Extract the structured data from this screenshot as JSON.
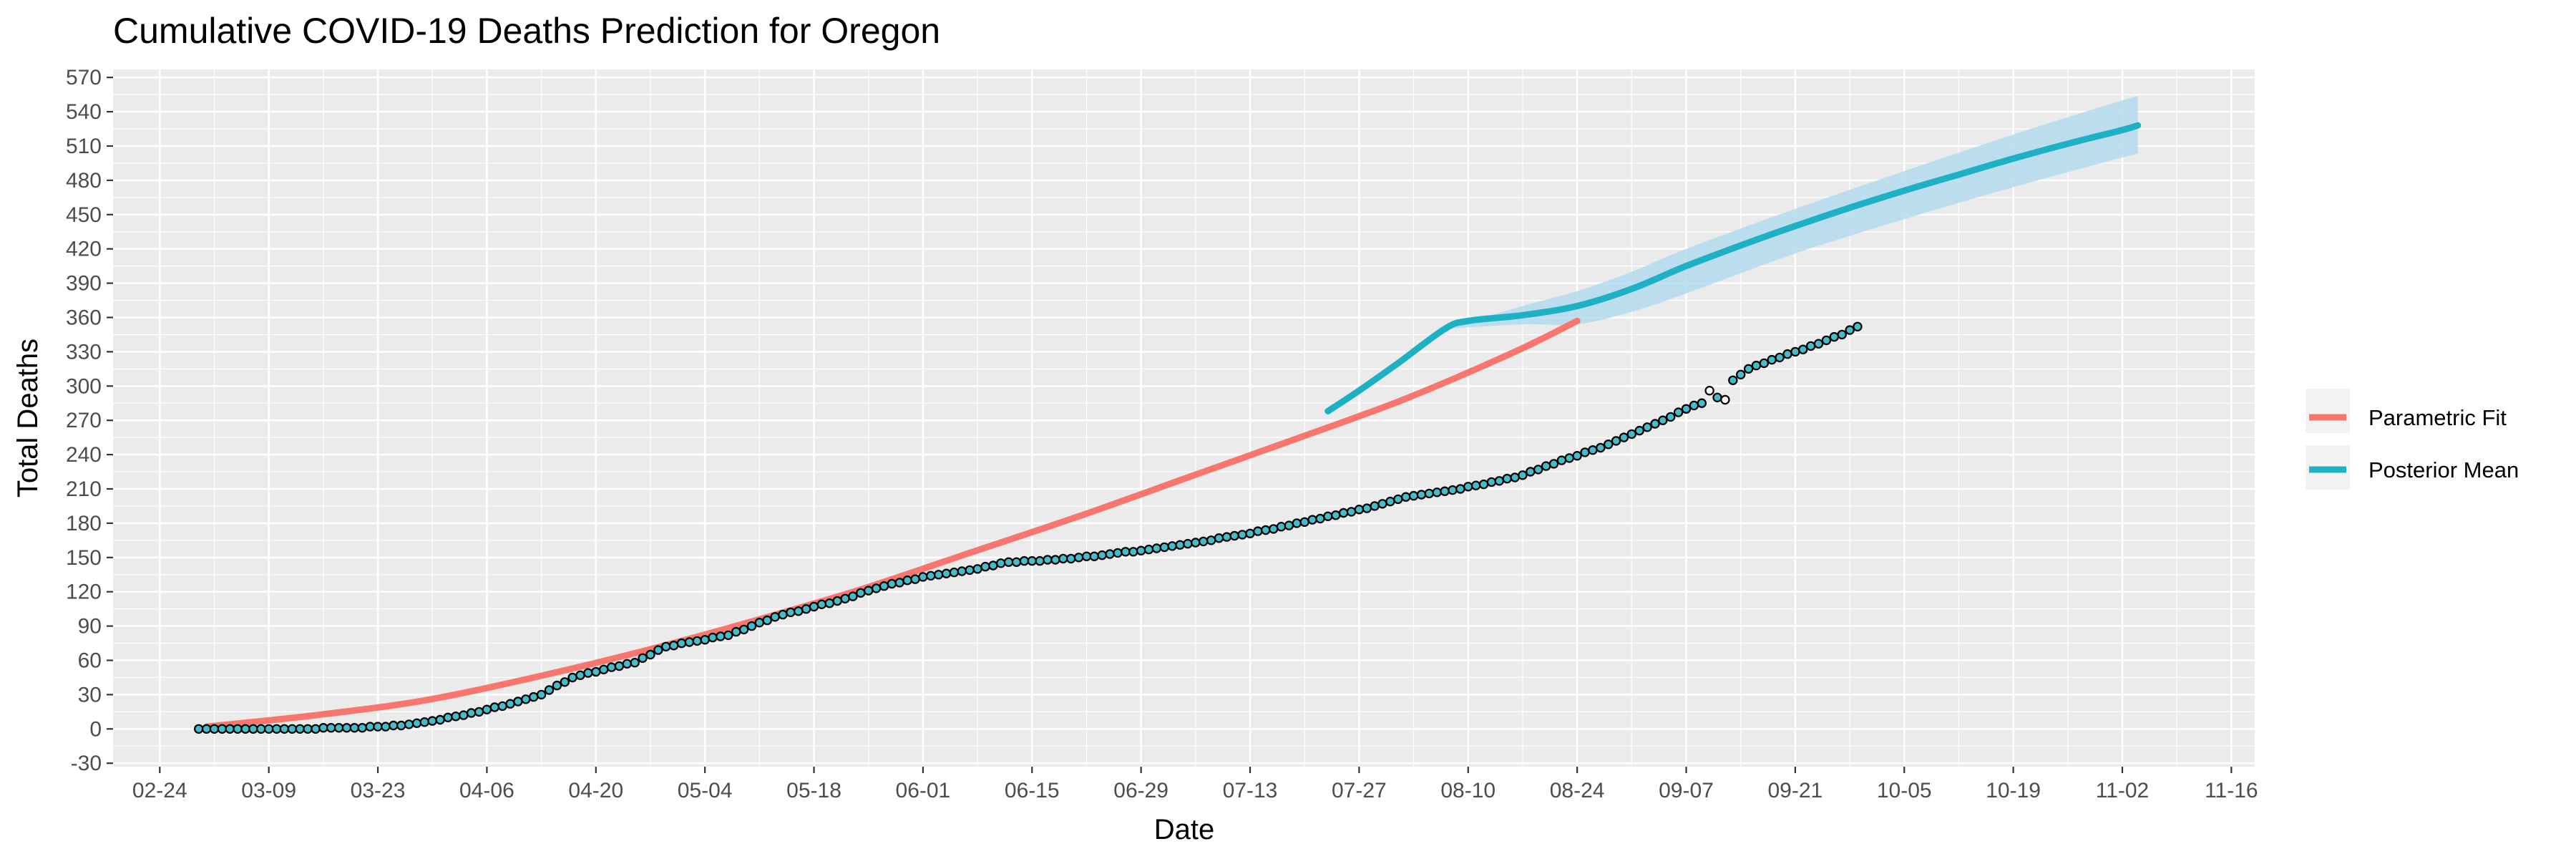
{
  "chart_data": {
    "type": "line",
    "title": "Cumulative COVID-19 Deaths Prediction for Oregon",
    "xlabel": "Date",
    "ylabel": "Total Deaths",
    "x_ticks": [
      "02-24",
      "03-09",
      "03-23",
      "04-06",
      "04-20",
      "05-04",
      "05-18",
      "06-01",
      "06-15",
      "06-29",
      "07-13",
      "07-27",
      "08-10",
      "08-24",
      "09-07",
      "09-21",
      "10-05",
      "10-19",
      "11-02",
      "11-16"
    ],
    "y_ticks": [
      -30,
      0,
      30,
      60,
      90,
      120,
      150,
      180,
      210,
      240,
      270,
      300,
      330,
      360,
      390,
      420,
      450,
      480,
      510,
      540,
      570
    ],
    "xlim": [
      "2020-02-18",
      "2020-11-19"
    ],
    "ylim": [
      -33,
      577
    ],
    "grid": true,
    "legend_position": "right",
    "colors": {
      "panel_bg": "#EBEBEB",
      "grid": "#FFFFFF",
      "parametric": "#F8766D",
      "posterior": "#1EB0C3",
      "band": "#B3DBEE",
      "point_fill": "#47BCC9",
      "point_edge": "#000000"
    },
    "series": [
      {
        "name": "Parametric Fit",
        "style": "line",
        "x": [
          "2020-03-01",
          "2020-03-15",
          "2020-03-29",
          "2020-04-12",
          "2020-04-26",
          "2020-05-10",
          "2020-05-24",
          "2020-06-07",
          "2020-06-21",
          "2020-07-05",
          "2020-07-19",
          "2020-08-02",
          "2020-08-16",
          "2020-08-24"
        ],
        "y": [
          2,
          12,
          25,
          45,
          68,
          94,
          122,
          154,
          186,
          220,
          254,
          289,
          330,
          357
        ]
      },
      {
        "name": "Posterior Mean",
        "style": "line",
        "x": [
          "2020-07-23",
          "2020-07-27",
          "2020-08-01",
          "2020-08-07",
          "2020-08-10",
          "2020-08-17",
          "2020-08-24",
          "2020-08-31",
          "2020-09-07",
          "2020-09-14",
          "2020-09-21",
          "2020-09-28",
          "2020-10-05",
          "2020-10-12",
          "2020-10-19",
          "2020-10-26",
          "2020-11-02",
          "2020-11-04"
        ],
        "y": [
          278,
          296,
          320,
          350,
          357,
          362,
          370,
          385,
          405,
          423,
          440,
          456,
          471,
          485,
          499,
          512,
          524,
          528
        ]
      }
    ],
    "credible_band": {
      "x": [
        "2020-08-07",
        "2020-08-17",
        "2020-08-24",
        "2020-08-31",
        "2020-09-07",
        "2020-09-21",
        "2020-10-05",
        "2020-10-19",
        "2020-11-02",
        "2020-11-04"
      ],
      "lower": [
        350,
        354,
        354,
        365,
        381,
        416,
        446,
        474,
        500,
        503
      ],
      "upper": [
        350,
        370,
        383,
        400,
        420,
        455,
        488,
        520,
        550,
        553
      ]
    },
    "observed": {
      "x_start": "2020-02-29",
      "knots_day_value": [
        [
          0,
          0
        ],
        [
          12,
          0
        ],
        [
          20,
          1
        ],
        [
          26,
          3
        ],
        [
          29,
          6
        ],
        [
          34,
          12
        ],
        [
          40,
          22
        ],
        [
          44,
          30
        ],
        [
          48,
          45
        ],
        [
          52,
          52
        ],
        [
          56,
          58
        ],
        [
          60,
          72
        ],
        [
          68,
          82
        ],
        [
          74,
          98
        ],
        [
          82,
          112
        ],
        [
          88,
          125
        ],
        [
          94,
          134
        ],
        [
          100,
          140
        ],
        [
          104,
          146
        ],
        [
          110,
          148
        ],
        [
          116,
          152
        ],
        [
          122,
          157
        ],
        [
          128,
          163
        ],
        [
          134,
          170
        ],
        [
          140,
          178
        ],
        [
          146,
          187
        ],
        [
          150,
          193
        ],
        [
          155,
          203
        ],
        [
          160,
          208
        ],
        [
          165,
          214
        ],
        [
          170,
          222
        ],
        [
          175,
          235
        ],
        [
          180,
          246
        ],
        [
          184,
          258
        ],
        [
          188,
          270
        ],
        [
          191,
          280
        ],
        [
          195,
          290
        ],
        [
          197,
          305
        ],
        [
          199,
          315
        ],
        [
          202,
          323
        ],
        [
          206,
          332
        ],
        [
          209,
          340
        ],
        [
          211,
          345
        ],
        [
          213,
          352
        ]
      ],
      "outliers_day_value": [
        [
          194,
          296
        ],
        [
          196,
          288
        ]
      ]
    }
  },
  "legend": {
    "items": [
      {
        "label": "Parametric Fit",
        "color": "#F8766D"
      },
      {
        "label": "Posterior Mean",
        "color": "#1EB0C3"
      }
    ]
  }
}
